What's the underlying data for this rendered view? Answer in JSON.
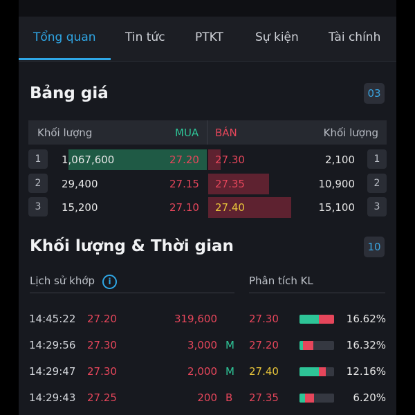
{
  "tabs": [
    "Tổng quan",
    "Tin tức",
    "PTKT",
    "Sự kiện",
    "Tài chính"
  ],
  "orderbook": {
    "title": "Bảng giá",
    "badge": "03",
    "header": {
      "buy_vol": "Khối lượng",
      "buy": "MUA",
      "sell": "BÁN",
      "sell_vol": "Khối lượng"
    },
    "rows": [
      {
        "idx": "1",
        "buy_vol": "1,067,600",
        "buy_price": "27.20",
        "sell_price": "27.30",
        "sell_vol": "2,100",
        "idx2": "1",
        "buy_fill": 0.95,
        "sell_fill": 0.07
      },
      {
        "idx": "2",
        "buy_vol": "29,400",
        "buy_price": "27.15",
        "sell_price": "27.35",
        "sell_vol": "10,900",
        "idx2": "2",
        "buy_fill": 0.0,
        "sell_fill": 0.35
      },
      {
        "idx": "3",
        "buy_vol": "15,200",
        "buy_price": "27.10",
        "sell_price": "27.40",
        "sell_vol": "15,100",
        "idx2": "3",
        "buy_fill": 0.0,
        "sell_fill": 0.48
      }
    ]
  },
  "trades": {
    "title": "Khối lượng & Thời gian",
    "badge": "10",
    "history_label": "Lịch sử khớp",
    "analysis_label": "Phân tích KL",
    "rows": [
      {
        "time": "14:45:22",
        "price": "27.20",
        "volume": "319,600",
        "side": "",
        "kl_price": "27.30",
        "kl_pct": "16.62%",
        "green": 0.55,
        "red": 0.45
      },
      {
        "time": "14:29:56",
        "price": "27.30",
        "volume": "3,000",
        "side": "M",
        "kl_price": "27.20",
        "kl_pct": "16.32%",
        "green": 0.1,
        "red": 0.3
      },
      {
        "time": "14:29:47",
        "price": "27.30",
        "volume": "2,000",
        "side": "M",
        "kl_price": "27.40",
        "kl_pct": "12.16%",
        "green": 0.55,
        "red": 0.2
      },
      {
        "time": "14:29:43",
        "price": "27.25",
        "volume": "200",
        "side": "B",
        "kl_price": "27.35",
        "kl_pct": "6.20%",
        "green": 0.15,
        "red": 0.25
      }
    ]
  },
  "colors": {
    "accent": "#2fa7e6",
    "up": "#2ec497",
    "down": "#e6465b",
    "ref": "#e8c53a"
  }
}
